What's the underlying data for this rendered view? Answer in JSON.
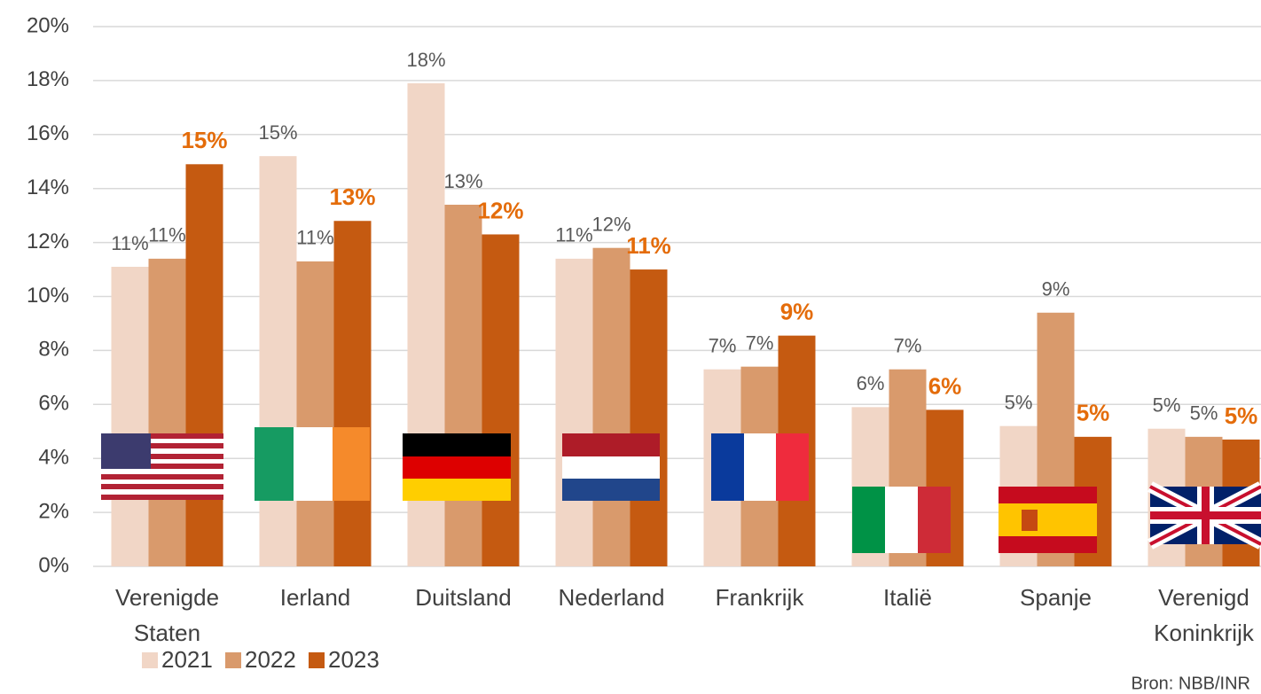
{
  "chart_data": {
    "type": "bar",
    "categories": [
      "Verenigde Staten",
      "Ierland",
      "Duitsland",
      "Nederland",
      "Frankrijk",
      "Italië",
      "Spanje",
      "Verenigd Koninkrijk"
    ],
    "series": [
      {
        "name": "2021",
        "color": "#f1d6c6",
        "values": [
          11.1,
          15.2,
          17.9,
          11.4,
          7.3,
          5.9,
          5.2,
          5.1
        ],
        "value_labels": [
          "11%",
          "15%",
          "18%",
          "11%",
          "7%",
          "6%",
          "5%",
          "5%"
        ]
      },
      {
        "name": "2022",
        "color": "#d99a6c",
        "values": [
          11.4,
          11.3,
          13.4,
          11.8,
          7.4,
          7.3,
          9.4,
          4.8
        ],
        "value_labels": [
          "11%",
          "11%",
          "13%",
          "12%",
          "7%",
          "7%",
          "9%",
          "5%"
        ]
      },
      {
        "name": "2023",
        "color": "#c55a11",
        "values": [
          14.9,
          12.8,
          12.3,
          11.0,
          8.55,
          5.8,
          4.8,
          4.7
        ],
        "value_labels": [
          "15%",
          "13%",
          "12%",
          "11%",
          "9%",
          "6%",
          "5%",
          "5%"
        ]
      }
    ],
    "ylim": [
      0,
      20
    ],
    "yticks": [
      {
        "value": 0,
        "label": "0%"
      },
      {
        "value": 2,
        "label": "2%"
      },
      {
        "value": 4,
        "label": "4%"
      },
      {
        "value": 6,
        "label": "6%"
      },
      {
        "value": 8,
        "label": "8%"
      },
      {
        "value": 10,
        "label": "10%"
      },
      {
        "value": 12,
        "label": "12%"
      },
      {
        "value": 14,
        "label": "14%"
      },
      {
        "value": 16,
        "label": "16%"
      },
      {
        "value": 18,
        "label": "18%"
      },
      {
        "value": 20,
        "label": "20%"
      }
    ],
    "grid": true,
    "source": "Bron: NBB/INR"
  }
}
